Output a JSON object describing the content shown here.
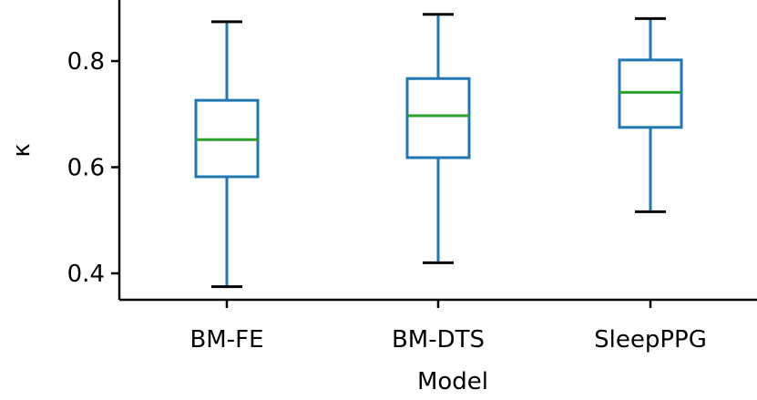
{
  "chart_data": {
    "type": "box",
    "xlabel": "Model",
    "ylabel": "κ",
    "ylim": [
      0.35,
      0.9
    ],
    "yticks": [
      "0.4",
      "0.6",
      "0.8"
    ],
    "categories": [
      "BM-FE",
      "BM-DTS",
      "SleepPPG"
    ],
    "boxes": [
      {
        "whisker_low": 0.375,
        "q1": 0.582,
        "median": 0.652,
        "q3": 0.726,
        "whisker_high": 0.874
      },
      {
        "whisker_low": 0.42,
        "q1": 0.618,
        "median": 0.697,
        "q3": 0.767,
        "whisker_high": 0.888
      },
      {
        "whisker_low": 0.516,
        "q1": 0.675,
        "median": 0.741,
        "q3": 0.802,
        "whisker_high": 0.88
      }
    ],
    "colors": {
      "box": "#1f77b4",
      "median": "#2ca02c",
      "cap": "#000000",
      "axis": "#000000"
    },
    "grid": false,
    "legend": "none"
  }
}
